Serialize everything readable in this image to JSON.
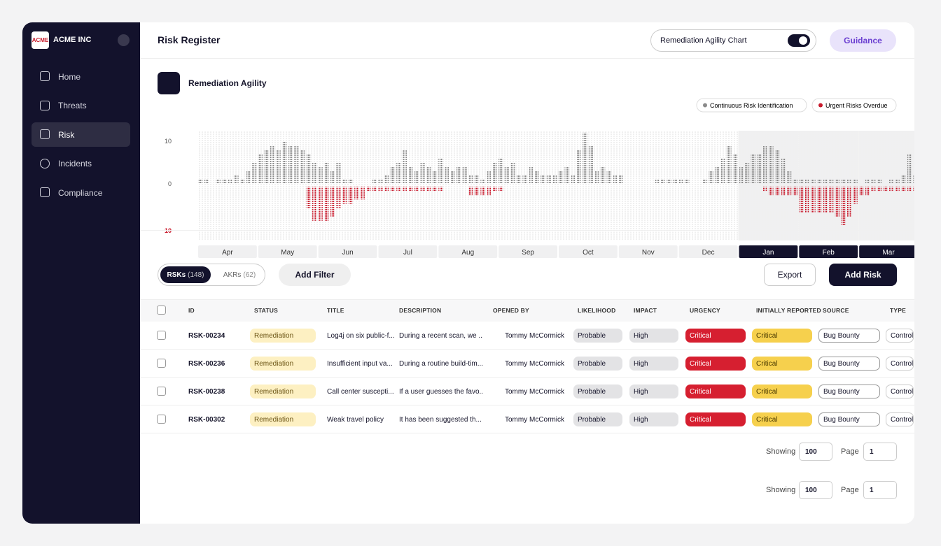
{
  "sidebar": {
    "logo": "ACME",
    "company": "ACME INC",
    "nav": [
      "Home",
      "Threats",
      "Risk",
      "Incidents",
      "Compliance"
    ]
  },
  "header": {
    "title": "Risk Register",
    "toggle_label": "Remediation Agility Chart",
    "guidance": "Guidance"
  },
  "chart_data": {
    "type": "bar",
    "title": "Remediation Agility",
    "months": [
      "Apr",
      "May",
      "Jun",
      "Jul",
      "Aug",
      "Sep",
      "Oct",
      "Nov",
      "Dec",
      "Jan",
      "Feb",
      "Mar"
    ],
    "selected_months": [
      9,
      10,
      11
    ],
    "series": [
      {
        "name": "Continuous Risk Identification",
        "color": "#8a8a8a",
        "values": [
          1,
          1,
          0,
          1,
          1,
          1,
          2,
          1,
          3,
          5,
          7,
          8,
          9,
          8,
          10,
          9,
          9,
          8,
          7,
          5,
          4,
          5,
          3,
          5,
          1,
          1,
          0,
          0,
          0,
          1,
          1,
          2,
          4,
          5,
          8,
          4,
          3,
          5,
          4,
          3,
          6,
          4,
          3,
          4,
          4,
          2,
          2,
          1,
          3,
          5,
          6,
          4,
          5,
          2,
          2,
          4,
          3,
          2,
          2,
          2,
          3,
          4,
          2,
          8,
          12,
          9,
          3,
          4,
          3,
          2,
          2,
          0,
          0,
          0,
          0,
          0,
          1,
          1,
          1,
          1,
          1,
          1,
          0,
          0,
          1,
          3,
          4,
          6,
          9,
          7,
          4,
          5,
          7,
          7,
          9,
          9,
          8,
          6,
          3,
          1,
          1,
          1,
          1,
          1,
          1,
          1,
          1,
          1,
          1,
          1,
          0,
          1,
          1,
          1,
          0,
          1,
          1,
          2,
          7,
          2
        ]
      },
      {
        "name": "Urgent Risks Overdue",
        "color": "#c8192b",
        "values": [
          0,
          0,
          0,
          0,
          0,
          0,
          0,
          0,
          0,
          0,
          0,
          0,
          0,
          0,
          0,
          0,
          0,
          0,
          -5,
          -8,
          -8,
          -8,
          -7,
          -5,
          -4,
          -4,
          -3,
          -3,
          -1,
          -1,
          -1,
          -1,
          -1,
          -1,
          -1,
          -1,
          -1,
          -1,
          -1,
          -1,
          -1,
          0,
          0,
          0,
          0,
          -2,
          -2,
          -2,
          -2,
          -1,
          -1,
          0,
          0,
          0,
          0,
          0,
          0,
          0,
          0,
          0,
          0,
          0,
          0,
          0,
          0,
          0,
          0,
          0,
          0,
          0,
          0,
          0,
          0,
          0,
          0,
          0,
          0,
          0,
          0,
          0,
          0,
          0,
          0,
          0,
          0,
          0,
          0,
          0,
          0,
          0,
          0,
          0,
          0,
          0,
          -1,
          -2,
          -2,
          -2,
          -2,
          -2,
          -6,
          -6,
          -6,
          -6,
          -6,
          -6,
          -7,
          -9,
          -7,
          -4,
          -2,
          -2,
          -1,
          -1,
          -1,
          -1,
          -1,
          -1,
          -1,
          -1
        ]
      }
    ],
    "ylim": [
      -13,
      12.5
    ],
    "yticks": [
      10,
      0,
      {
        "value": -10,
        "label": "10"
      }
    ]
  },
  "tabs": [
    {
      "label": "RSKs",
      "count": "(148)"
    },
    {
      "label": "AKRs",
      "count": "(62)"
    }
  ],
  "toolbar": {
    "filter": "Add Filter",
    "export": "Export",
    "add": "Add Risk"
  },
  "table": {
    "columns": [
      "ID",
      "STATUS",
      "TITLE",
      "DESCRIPTION",
      "OPENED BY",
      "LIKELIHOOD",
      "IMPACT",
      "URGENCY",
      "INITIALLY REPORTED",
      "SOURCE",
      "TYPE"
    ],
    "rows": [
      [
        "RSK-00234",
        "Remediation",
        "Log4j on six public-f...",
        "During a recent scan, we ...",
        "Tommy McCormick",
        "Probable",
        "High",
        "Critical",
        "Critical",
        "Bug Bounty",
        "Control"
      ],
      [
        "RSK-00236",
        "Remediation",
        "Insufficient input va...",
        "During a routine build-tim...",
        "Tommy McCormick",
        "Probable",
        "High",
        "Critical",
        "Critical",
        "Bug Bounty",
        "Control"
      ],
      [
        "RSK-00238",
        "Remediation",
        "Call center suscepti...",
        "If a user guesses the favo...",
        "Tommy McCormick",
        "Probable",
        "High",
        "Critical",
        "Critical",
        "Bug Bounty",
        "Control"
      ],
      [
        "RSK-00302",
        "Remediation",
        "Weak travel policy",
        "It has been suggested th...",
        "Tommy McCormick",
        "Probable",
        "High",
        "Critical",
        "Critical",
        "Bug Bounty",
        "Control"
      ]
    ]
  },
  "pagination": [
    {
      "showing": "Showing",
      "size": "100",
      "page": "Page",
      "number": "1"
    },
    {
      "showing": "Showing",
      "size": "100",
      "page": "Page",
      "number": "1"
    }
  ]
}
